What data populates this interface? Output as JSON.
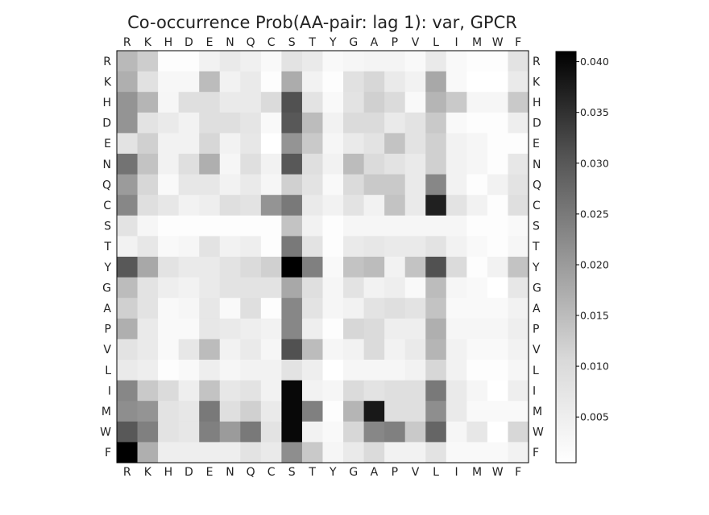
{
  "chart_data": {
    "type": "heatmap",
    "title": "Co-occurrence Prob(AA-pair: lag 1): var, GPCR",
    "x_categories": [
      "R",
      "K",
      "H",
      "D",
      "E",
      "N",
      "Q",
      "C",
      "S",
      "T",
      "Y",
      "G",
      "A",
      "P",
      "V",
      "L",
      "I",
      "M",
      "W",
      "F"
    ],
    "y_categories": [
      "R",
      "K",
      "H",
      "D",
      "E",
      "N",
      "Q",
      "C",
      "S",
      "T",
      "Y",
      "G",
      "A",
      "P",
      "V",
      "L",
      "I",
      "M",
      "W",
      "F"
    ],
    "colorbar": {
      "vmin": 0.0005,
      "vmax": 0.041,
      "ticks": [
        0.005,
        0.01,
        0.015,
        0.02,
        0.025,
        0.03,
        0.035,
        0.04
      ],
      "tick_labels": [
        "0.005",
        "0.010",
        "0.015",
        "0.020",
        "0.025",
        "0.030",
        "0.035",
        "0.040"
      ],
      "colormap": "Greys"
    },
    "values": [
      [
        0.0155,
        0.0125,
        0.001,
        0.001,
        0.004,
        0.006,
        0.0045,
        0.002,
        0.008,
        0.006,
        0.002,
        0.003,
        0.0035,
        0.0035,
        0.002,
        0.006,
        0.002,
        0.001,
        0.001,
        0.008
      ],
      [
        0.017,
        0.0085,
        0.0025,
        0.0025,
        0.015,
        0.004,
        0.006,
        0.001,
        0.0175,
        0.004,
        0.001,
        0.0085,
        0.011,
        0.006,
        0.004,
        0.018,
        0.002,
        0.0005,
        0.0005,
        0.006
      ],
      [
        0.021,
        0.016,
        0.003,
        0.009,
        0.009,
        0.006,
        0.006,
        0.01,
        0.031,
        0.008,
        0.002,
        0.008,
        0.012,
        0.01,
        0.002,
        0.016,
        0.013,
        0.003,
        0.003,
        0.013
      ],
      [
        0.021,
        0.008,
        0.006,
        0.004,
        0.009,
        0.009,
        0.0075,
        0.002,
        0.03,
        0.015,
        0.004,
        0.01,
        0.01,
        0.006,
        0.008,
        0.013,
        0.002,
        0.001,
        0.001,
        0.005
      ],
      [
        0.008,
        0.012,
        0.004,
        0.004,
        0.011,
        0.004,
        0.007,
        0.0005,
        0.021,
        0.013,
        0.003,
        0.006,
        0.008,
        0.014,
        0.008,
        0.012,
        0.004,
        0.003,
        0.001,
        0.001
      ],
      [
        0.026,
        0.014,
        0.004,
        0.009,
        0.017,
        0.003,
        0.009,
        0.004,
        0.03,
        0.009,
        0.004,
        0.015,
        0.01,
        0.008,
        0.006,
        0.012,
        0.004,
        0.003,
        0.001,
        0.007
      ],
      [
        0.02,
        0.011,
        0.002,
        0.007,
        0.007,
        0.004,
        0.006,
        0.003,
        0.012,
        0.008,
        0.002,
        0.01,
        0.013,
        0.013,
        0.006,
        0.023,
        0.004,
        0.001,
        0.004,
        0.008
      ],
      [
        0.023,
        0.009,
        0.007,
        0.004,
        0.005,
        0.009,
        0.008,
        0.021,
        0.025,
        0.006,
        0.004,
        0.008,
        0.004,
        0.014,
        0.006,
        0.037,
        0.008,
        0.004,
        0.001,
        0.009
      ],
      [
        0.008,
        0.003,
        0.001,
        0.001,
        0.001,
        0.001,
        0.001,
        0.001,
        0.014,
        0.004,
        0.001,
        0.003,
        0.003,
        0.003,
        0.003,
        0.003,
        0.003,
        0.001,
        0.001,
        0.002
      ],
      [
        0.004,
        0.007,
        0.002,
        0.003,
        0.008,
        0.004,
        0.005,
        0.001,
        0.025,
        0.008,
        0.001,
        0.006,
        0.007,
        0.006,
        0.006,
        0.008,
        0.004,
        0.002,
        0.001,
        0.003
      ],
      [
        0.03,
        0.018,
        0.008,
        0.006,
        0.006,
        0.008,
        0.01,
        0.012,
        0.041,
        0.024,
        0.002,
        0.014,
        0.015,
        0.004,
        0.014,
        0.031,
        0.01,
        0.001,
        0.004,
        0.014
      ],
      [
        0.015,
        0.008,
        0.005,
        0.004,
        0.006,
        0.008,
        0.008,
        0.008,
        0.018,
        0.009,
        0.003,
        0.008,
        0.004,
        0.005,
        0.002,
        0.015,
        0.003,
        0.002,
        0.0005,
        0.007
      ],
      [
        0.012,
        0.008,
        0.002,
        0.003,
        0.007,
        0.002,
        0.009,
        0.001,
        0.023,
        0.008,
        0.003,
        0.004,
        0.008,
        0.009,
        0.008,
        0.014,
        0.002,
        0.002,
        0.002,
        0.004
      ],
      [
        0.017,
        0.006,
        0.002,
        0.002,
        0.007,
        0.006,
        0.005,
        0.004,
        0.023,
        0.005,
        0.001,
        0.011,
        0.01,
        0.005,
        0.005,
        0.017,
        0.003,
        0.003,
        0.003,
        0.005
      ],
      [
        0.008,
        0.006,
        0.002,
        0.007,
        0.015,
        0.004,
        0.006,
        0.003,
        0.031,
        0.015,
        0.003,
        0.004,
        0.01,
        0.004,
        0.006,
        0.016,
        0.004,
        0.002,
        0.002,
        0.004
      ],
      [
        0.006,
        0.005,
        0.001,
        0.002,
        0.005,
        0.003,
        0.004,
        0.004,
        0.008,
        0.005,
        0.0005,
        0.003,
        0.003,
        0.003,
        0.004,
        0.011,
        0.004,
        0.001,
        0.001,
        0.003
      ],
      [
        0.023,
        0.013,
        0.01,
        0.005,
        0.014,
        0.007,
        0.008,
        0.004,
        0.04,
        0.004,
        0.003,
        0.01,
        0.008,
        0.009,
        0.009,
        0.025,
        0.006,
        0.003,
        0.0005,
        0.005
      ],
      [
        0.022,
        0.021,
        0.008,
        0.007,
        0.025,
        0.009,
        0.012,
        0.006,
        0.04,
        0.024,
        0.001,
        0.016,
        0.038,
        0.009,
        0.009,
        0.022,
        0.006,
        0.002,
        0.002,
        0.002
      ],
      [
        0.03,
        0.024,
        0.008,
        0.007,
        0.024,
        0.02,
        0.025,
        0.008,
        0.04,
        0.004,
        0.002,
        0.011,
        0.023,
        0.024,
        0.013,
        0.028,
        0.003,
        0.007,
        0.0005,
        0.011
      ],
      [
        0.041,
        0.017,
        0.005,
        0.005,
        0.005,
        0.005,
        0.008,
        0.006,
        0.022,
        0.013,
        0.003,
        0.006,
        0.01,
        0.004,
        0.004,
        0.008,
        0.002,
        0.002,
        0.002,
        0.004
      ]
    ]
  }
}
